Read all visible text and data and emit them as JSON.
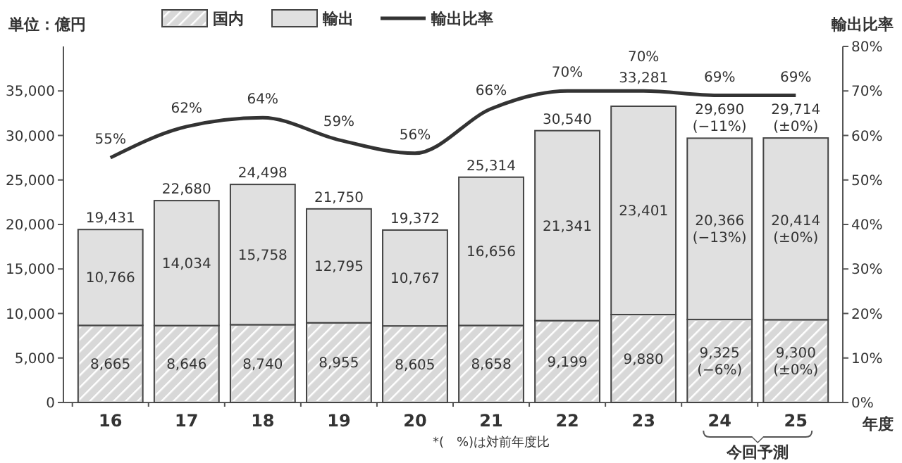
{
  "chart_data": {
    "type": "bar",
    "stacked": true,
    "categories": [
      "16",
      "17",
      "18",
      "19",
      "20",
      "21",
      "22",
      "23",
      "24",
      "25"
    ],
    "ylabel": "単位：億円",
    "y2label": "輸出比率",
    "xlabel": "年度",
    "ylim": [
      0,
      40000
    ],
    "yticks": [
      0,
      {
        "value": 5000,
        "label": "5,000"
      },
      {
        "value": 10000,
        "label": "10,000"
      },
      {
        "value": 15000,
        "label": "15,000"
      },
      {
        "value": 20000,
        "label": "20,000"
      },
      {
        "value": 25000,
        "label": "25,000"
      },
      {
        "value": 30000,
        "label": "30,000"
      },
      {
        "value": 35000,
        "label": "35,000"
      }
    ],
    "y2lim": [
      0,
      80
    ],
    "y2ticks": [
      {
        "value": 0,
        "label": "0%"
      },
      {
        "value": 10,
        "label": "10%"
      },
      {
        "value": 20,
        "label": "20%"
      },
      {
        "value": 30,
        "label": "30%"
      },
      {
        "value": 40,
        "label": "40%"
      },
      {
        "value": 50,
        "label": "50%"
      },
      {
        "value": 60,
        "label": "60%"
      },
      {
        "value": 70,
        "label": "70%"
      },
      {
        "value": 80,
        "label": "80%"
      }
    ],
    "series": [
      {
        "name": "国内",
        "color": "#d8d8d8",
        "values": [
          8665,
          8646,
          8740,
          8955,
          8605,
          8658,
          9199,
          9880,
          9325,
          9300
        ],
        "value_labels": [
          "8,665",
          "8,646",
          "8,740",
          "8,955",
          "8,605",
          "8,658",
          "9,199",
          "9,880",
          "9,325\n(−6%)",
          "9,300\n(±0%)"
        ]
      },
      {
        "name": "輸出",
        "color": "#e0e0e0",
        "values": [
          10766,
          14034,
          15758,
          12795,
          10767,
          16656,
          21341,
          23401,
          20366,
          20414
        ],
        "value_labels": [
          "10,766",
          "14,034",
          "15,758",
          "12,795",
          "10,767",
          "16,656",
          "21,341",
          "23,401",
          "20,366\n(−13%)",
          "20,414\n(±0%)"
        ]
      },
      {
        "name": "輸出比率",
        "type": "line",
        "axis": "y2",
        "color": "#333333",
        "values": [
          55,
          62,
          64,
          59,
          56,
          66,
          70,
          70,
          69,
          69
        ],
        "value_labels": [
          "55%",
          "62%",
          "64%",
          "59%",
          "56%",
          "66%",
          "70%",
          "70%",
          "69%",
          "69%"
        ]
      }
    ],
    "totals": [
      "19,431",
      "22,680",
      "24,498",
      "21,750",
      "19,372",
      "25,314",
      "30,540",
      "33,281",
      "29,690\n(−11%)",
      "29,714\n(±0%)"
    ],
    "legend": "top",
    "grid": false,
    "marker": "none",
    "line_style": "solid",
    "annotations": [
      "*(　%)は対前年度比",
      "今回予測"
    ]
  }
}
